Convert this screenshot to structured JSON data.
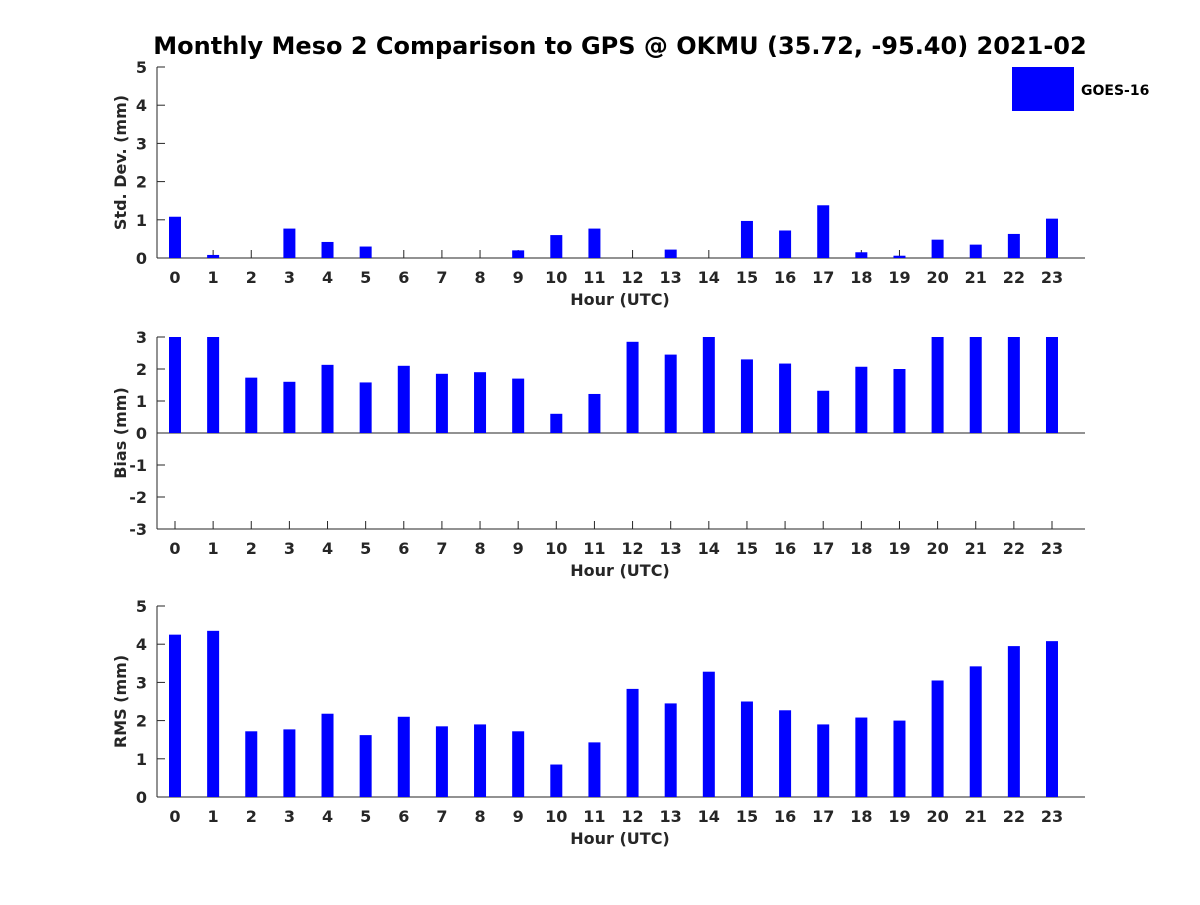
{
  "title": "Monthly Meso 2 Comparison to GPS @ OKMU (35.72, -95.40) 2021-02",
  "legend": {
    "label": "GOES-16",
    "color": "#0000ff",
    "placement": "top-right"
  },
  "chart_data": [
    {
      "type": "bar",
      "name": "std-dev",
      "ylabel": "Std. Dev. (mm)",
      "xlabel": "Hour (UTC)",
      "ylim": [
        0,
        5
      ],
      "yticks": [
        0,
        1,
        2,
        3,
        4,
        5
      ],
      "categories": [
        "0",
        "1",
        "2",
        "3",
        "4",
        "5",
        "6",
        "7",
        "8",
        "9",
        "10",
        "11",
        "12",
        "13",
        "14",
        "15",
        "16",
        "17",
        "18",
        "19",
        "20",
        "21",
        "22",
        "23"
      ],
      "values": [
        1.08,
        0.08,
        0,
        0.77,
        0.42,
        0.3,
        0,
        0,
        0,
        0.2,
        0.6,
        0.77,
        0,
        0.22,
        0,
        0.97,
        0.72,
        1.38,
        0.15,
        0.06,
        0.48,
        0.35,
        0.63,
        1.03
      ],
      "grid": false
    },
    {
      "type": "bar",
      "name": "bias",
      "ylabel": "Bias (mm)",
      "xlabel": "Hour (UTC)",
      "ylim": [
        -3,
        3
      ],
      "yticks": [
        -3,
        -2,
        -1,
        0,
        1,
        2,
        3
      ],
      "categories": [
        "0",
        "1",
        "2",
        "3",
        "4",
        "5",
        "6",
        "7",
        "8",
        "9",
        "10",
        "11",
        "12",
        "13",
        "14",
        "15",
        "16",
        "17",
        "18",
        "19",
        "20",
        "21",
        "22",
        "23"
      ],
      "values": [
        3.0,
        3.0,
        1.73,
        1.6,
        2.13,
        1.58,
        2.1,
        1.85,
        1.9,
        1.7,
        0.6,
        1.22,
        2.85,
        2.45,
        3.0,
        2.3,
        2.17,
        1.32,
        2.07,
        2.0,
        3.0,
        3.0,
        3.0,
        3.0
      ],
      "grid": false
    },
    {
      "type": "bar",
      "name": "rms",
      "ylabel": "RMS (mm)",
      "xlabel": "Hour (UTC)",
      "ylim": [
        0,
        5
      ],
      "yticks": [
        0,
        1,
        2,
        3,
        4,
        5
      ],
      "categories": [
        "0",
        "1",
        "2",
        "3",
        "4",
        "5",
        "6",
        "7",
        "8",
        "9",
        "10",
        "11",
        "12",
        "13",
        "14",
        "15",
        "16",
        "17",
        "18",
        "19",
        "20",
        "21",
        "22",
        "23"
      ],
      "values": [
        4.25,
        4.35,
        1.72,
        1.77,
        2.18,
        1.62,
        2.1,
        1.85,
        1.9,
        1.72,
        0.85,
        1.43,
        2.83,
        2.45,
        3.28,
        2.5,
        2.27,
        1.9,
        2.08,
        2.0,
        3.05,
        3.42,
        3.95,
        4.08
      ],
      "grid": false
    }
  ]
}
